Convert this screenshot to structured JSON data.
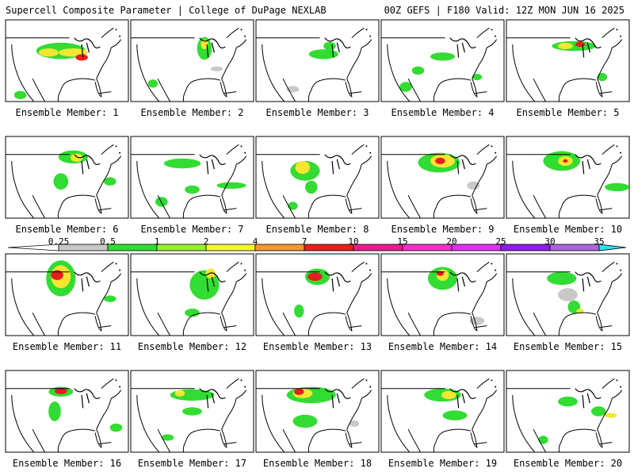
{
  "header": {
    "left_title": "Supercell Composite Parameter | College of DuPage NEXLAB",
    "right_title": "00Z GEFS | F180 Valid: 12Z MON JUN 16 2025"
  },
  "panels": [
    {
      "label": "Ensemble Member: 1"
    },
    {
      "label": "Ensemble Member: 2"
    },
    {
      "label": "Ensemble Member: 3"
    },
    {
      "label": "Ensemble Member: 4"
    },
    {
      "label": "Ensemble Member: 5"
    },
    {
      "label": "Ensemble Member: 6"
    },
    {
      "label": "Ensemble Member: 7"
    },
    {
      "label": "Ensemble Member: 8"
    },
    {
      "label": "Ensemble Member: 9"
    },
    {
      "label": "Ensemble Member: 10"
    },
    {
      "label": "Ensemble Member: 11"
    },
    {
      "label": "Ensemble Member: 12"
    },
    {
      "label": "Ensemble Member: 13"
    },
    {
      "label": "Ensemble Member: 14"
    },
    {
      "label": "Ensemble Member: 15"
    },
    {
      "label": "Ensemble Member: 16"
    },
    {
      "label": "Ensemble Member: 17"
    },
    {
      "label": "Ensemble Member: 18"
    },
    {
      "label": "Ensemble Member: 19"
    },
    {
      "label": "Ensemble Member: 20"
    }
  ],
  "colorbar": {
    "ticks": [
      "0.25",
      "0.5",
      "1",
      "2",
      "4",
      "7",
      "10",
      "15",
      "20",
      "25",
      "30",
      "35"
    ],
    "colors": [
      "#c8c8c8",
      "#32dc32",
      "#96f032",
      "#f5f532",
      "#f59632",
      "#e61e1e",
      "#e61e8c",
      "#f032c8",
      "#dc32f0",
      "#8c1ee6",
      "#aa64dc",
      "#32dcf0"
    ]
  }
}
